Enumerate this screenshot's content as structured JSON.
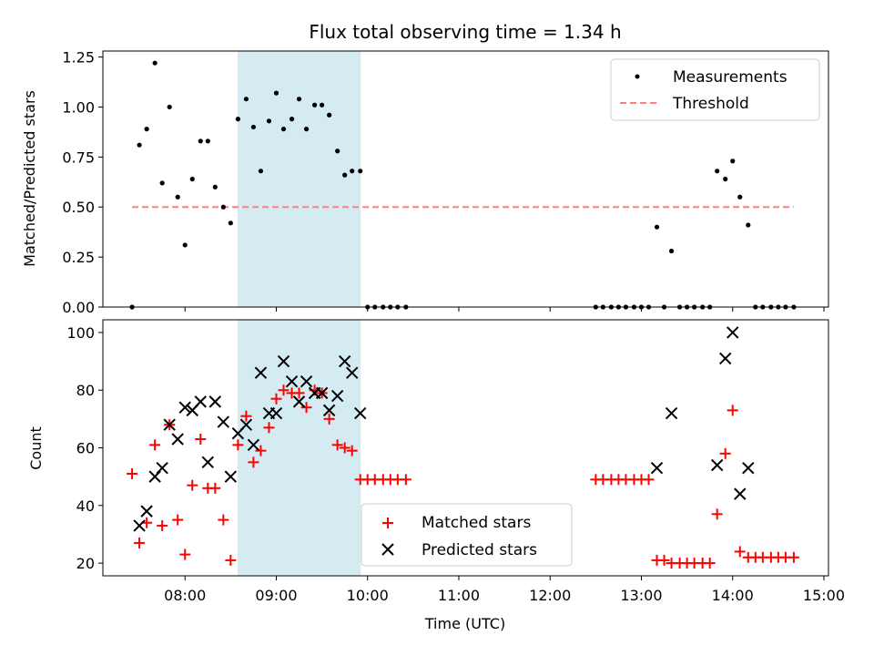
{
  "colors": {
    "span": "#add8e6",
    "threshold": "#ff7f7f",
    "measure": "#000000",
    "matched": "#ff0000",
    "predicted": "#000000"
  },
  "chart_data": [
    {
      "type": "scatter",
      "title": "Flux total observing time = 1.34 h",
      "xlabel": "",
      "ylabel": "Matched/Predicted stars",
      "xlim": [
        7.1,
        15.05
      ],
      "ylim": [
        0,
        1.28
      ],
      "yticks": [
        0,
        0.25,
        0.5,
        0.75,
        1.0,
        1.25
      ],
      "ytick_labels": [
        "0.00",
        "0.25",
        "0.50",
        "0.75",
        "1.00",
        "1.25"
      ],
      "shaded_span_hours": [
        8.58,
        9.92
      ],
      "threshold": {
        "name": "Threshold",
        "value": 0.5,
        "x_range": [
          7.42,
          14.67
        ]
      },
      "legend": {
        "position": "upper right",
        "entries": [
          "Measurements",
          "Threshold"
        ]
      },
      "series": [
        {
          "name": "Measurements",
          "x": [
            7.42,
            7.5,
            7.58,
            7.67,
            7.75,
            7.83,
            7.92,
            8.0,
            8.08,
            8.17,
            8.25,
            8.33,
            8.42,
            8.5,
            8.58,
            8.67,
            8.75,
            8.83,
            8.92,
            9.0,
            9.08,
            9.17,
            9.25,
            9.33,
            9.42,
            9.5,
            9.58,
            9.67,
            9.75,
            9.83,
            9.92,
            10.0,
            10.08,
            10.17,
            10.25,
            10.33,
            10.42,
            12.5,
            12.58,
            12.67,
            12.75,
            12.83,
            12.92,
            13.0,
            13.08,
            13.17,
            13.25,
            13.33,
            13.42,
            13.5,
            13.58,
            13.67,
            13.75,
            13.83,
            13.92,
            14.0,
            14.08,
            14.17,
            14.25,
            14.33,
            14.42,
            14.5,
            14.58,
            14.67
          ],
          "y": [
            0,
            0.81,
            0.89,
            1.22,
            0.62,
            1.0,
            0.55,
            0.31,
            0.64,
            0.83,
            0.83,
            0.6,
            0.5,
            0.42,
            0.94,
            1.04,
            0.9,
            0.68,
            0.93,
            1.07,
            0.89,
            0.94,
            1.04,
            0.89,
            1.01,
            1.01,
            0.96,
            0.78,
            0.66,
            0.68,
            0.68,
            0,
            0,
            0,
            0,
            0,
            0,
            0,
            0,
            0,
            0,
            0,
            0,
            0,
            0,
            0.4,
            0,
            0.28,
            0,
            0,
            0,
            0,
            0,
            0.68,
            0.64,
            0.73,
            0.55,
            0.41,
            0,
            0,
            0,
            0,
            0,
            0
          ]
        }
      ]
    },
    {
      "type": "scatter",
      "title": "",
      "xlabel": "Time (UTC)",
      "ylabel": "Count",
      "xlim": [
        7.1,
        15.05
      ],
      "ylim": [
        15.6,
        104.4
      ],
      "xticks": [
        8,
        9,
        10,
        11,
        12,
        13,
        14,
        15
      ],
      "xtick_labels": [
        "08:00",
        "09:00",
        "10:00",
        "11:00",
        "12:00",
        "13:00",
        "14:00",
        "15:00"
      ],
      "yticks": [
        20,
        40,
        60,
        80,
        100
      ],
      "ytick_labels": [
        "20",
        "40",
        "60",
        "80",
        "100"
      ],
      "shaded_span_hours": [
        8.58,
        9.92
      ],
      "legend": {
        "position": "lower center",
        "entries": [
          "Matched stars",
          "Predicted stars"
        ]
      },
      "series": [
        {
          "name": "Matched stars",
          "marker": "+",
          "x": [
            7.42,
            7.5,
            7.58,
            7.67,
            7.75,
            7.83,
            7.92,
            8.0,
            8.08,
            8.17,
            8.25,
            8.33,
            8.42,
            8.5,
            8.58,
            8.67,
            8.75,
            8.83,
            8.92,
            9.0,
            9.08,
            9.17,
            9.25,
            9.33,
            9.42,
            9.5,
            9.58,
            9.67,
            9.75,
            9.83,
            9.92,
            10.0,
            10.08,
            10.17,
            10.25,
            10.33,
            10.42,
            12.5,
            12.58,
            12.67,
            12.75,
            12.83,
            12.92,
            13.0,
            13.08,
            13.17,
            13.25,
            13.33,
            13.42,
            13.5,
            13.58,
            13.67,
            13.75,
            13.83,
            13.92,
            14.0,
            14.08,
            14.17,
            14.25,
            14.33,
            14.42,
            14.5,
            14.58,
            14.67
          ],
          "y": [
            51,
            27,
            34,
            61,
            33,
            68,
            35,
            23,
            47,
            63,
            46,
            46,
            35,
            21,
            61,
            71,
            55,
            59,
            67,
            77,
            80,
            79,
            79,
            74,
            80,
            79,
            70,
            61,
            60,
            59,
            49,
            49,
            49,
            49,
            49,
            49,
            49,
            49,
            49,
            49,
            49,
            49,
            49,
            49,
            49,
            21,
            21,
            20,
            20,
            20,
            20,
            20,
            20,
            37,
            58,
            73,
            24,
            22,
            22,
            22,
            22,
            22,
            22,
            22
          ]
        },
        {
          "name": "Predicted stars",
          "marker": "x",
          "x": [
            7.5,
            7.58,
            7.67,
            7.75,
            7.83,
            7.92,
            8.0,
            8.08,
            8.17,
            8.25,
            8.33,
            8.42,
            8.5,
            8.58,
            8.67,
            8.75,
            8.83,
            8.92,
            9.0,
            9.08,
            9.17,
            9.25,
            9.33,
            9.42,
            9.5,
            9.58,
            9.67,
            9.75,
            9.83,
            9.92,
            13.17,
            13.33,
            13.83,
            13.92,
            14.0,
            14.08,
            14.17
          ],
          "y": [
            33,
            38,
            50,
            53,
            68,
            63,
            74,
            73,
            76,
            55,
            76,
            69,
            50,
            65,
            68,
            61,
            86,
            72,
            72,
            90,
            83,
            76,
            83,
            79,
            79,
            73,
            78,
            90,
            86,
            72,
            53,
            72,
            54,
            91,
            100,
            44,
            53
          ]
        }
      ]
    }
  ]
}
